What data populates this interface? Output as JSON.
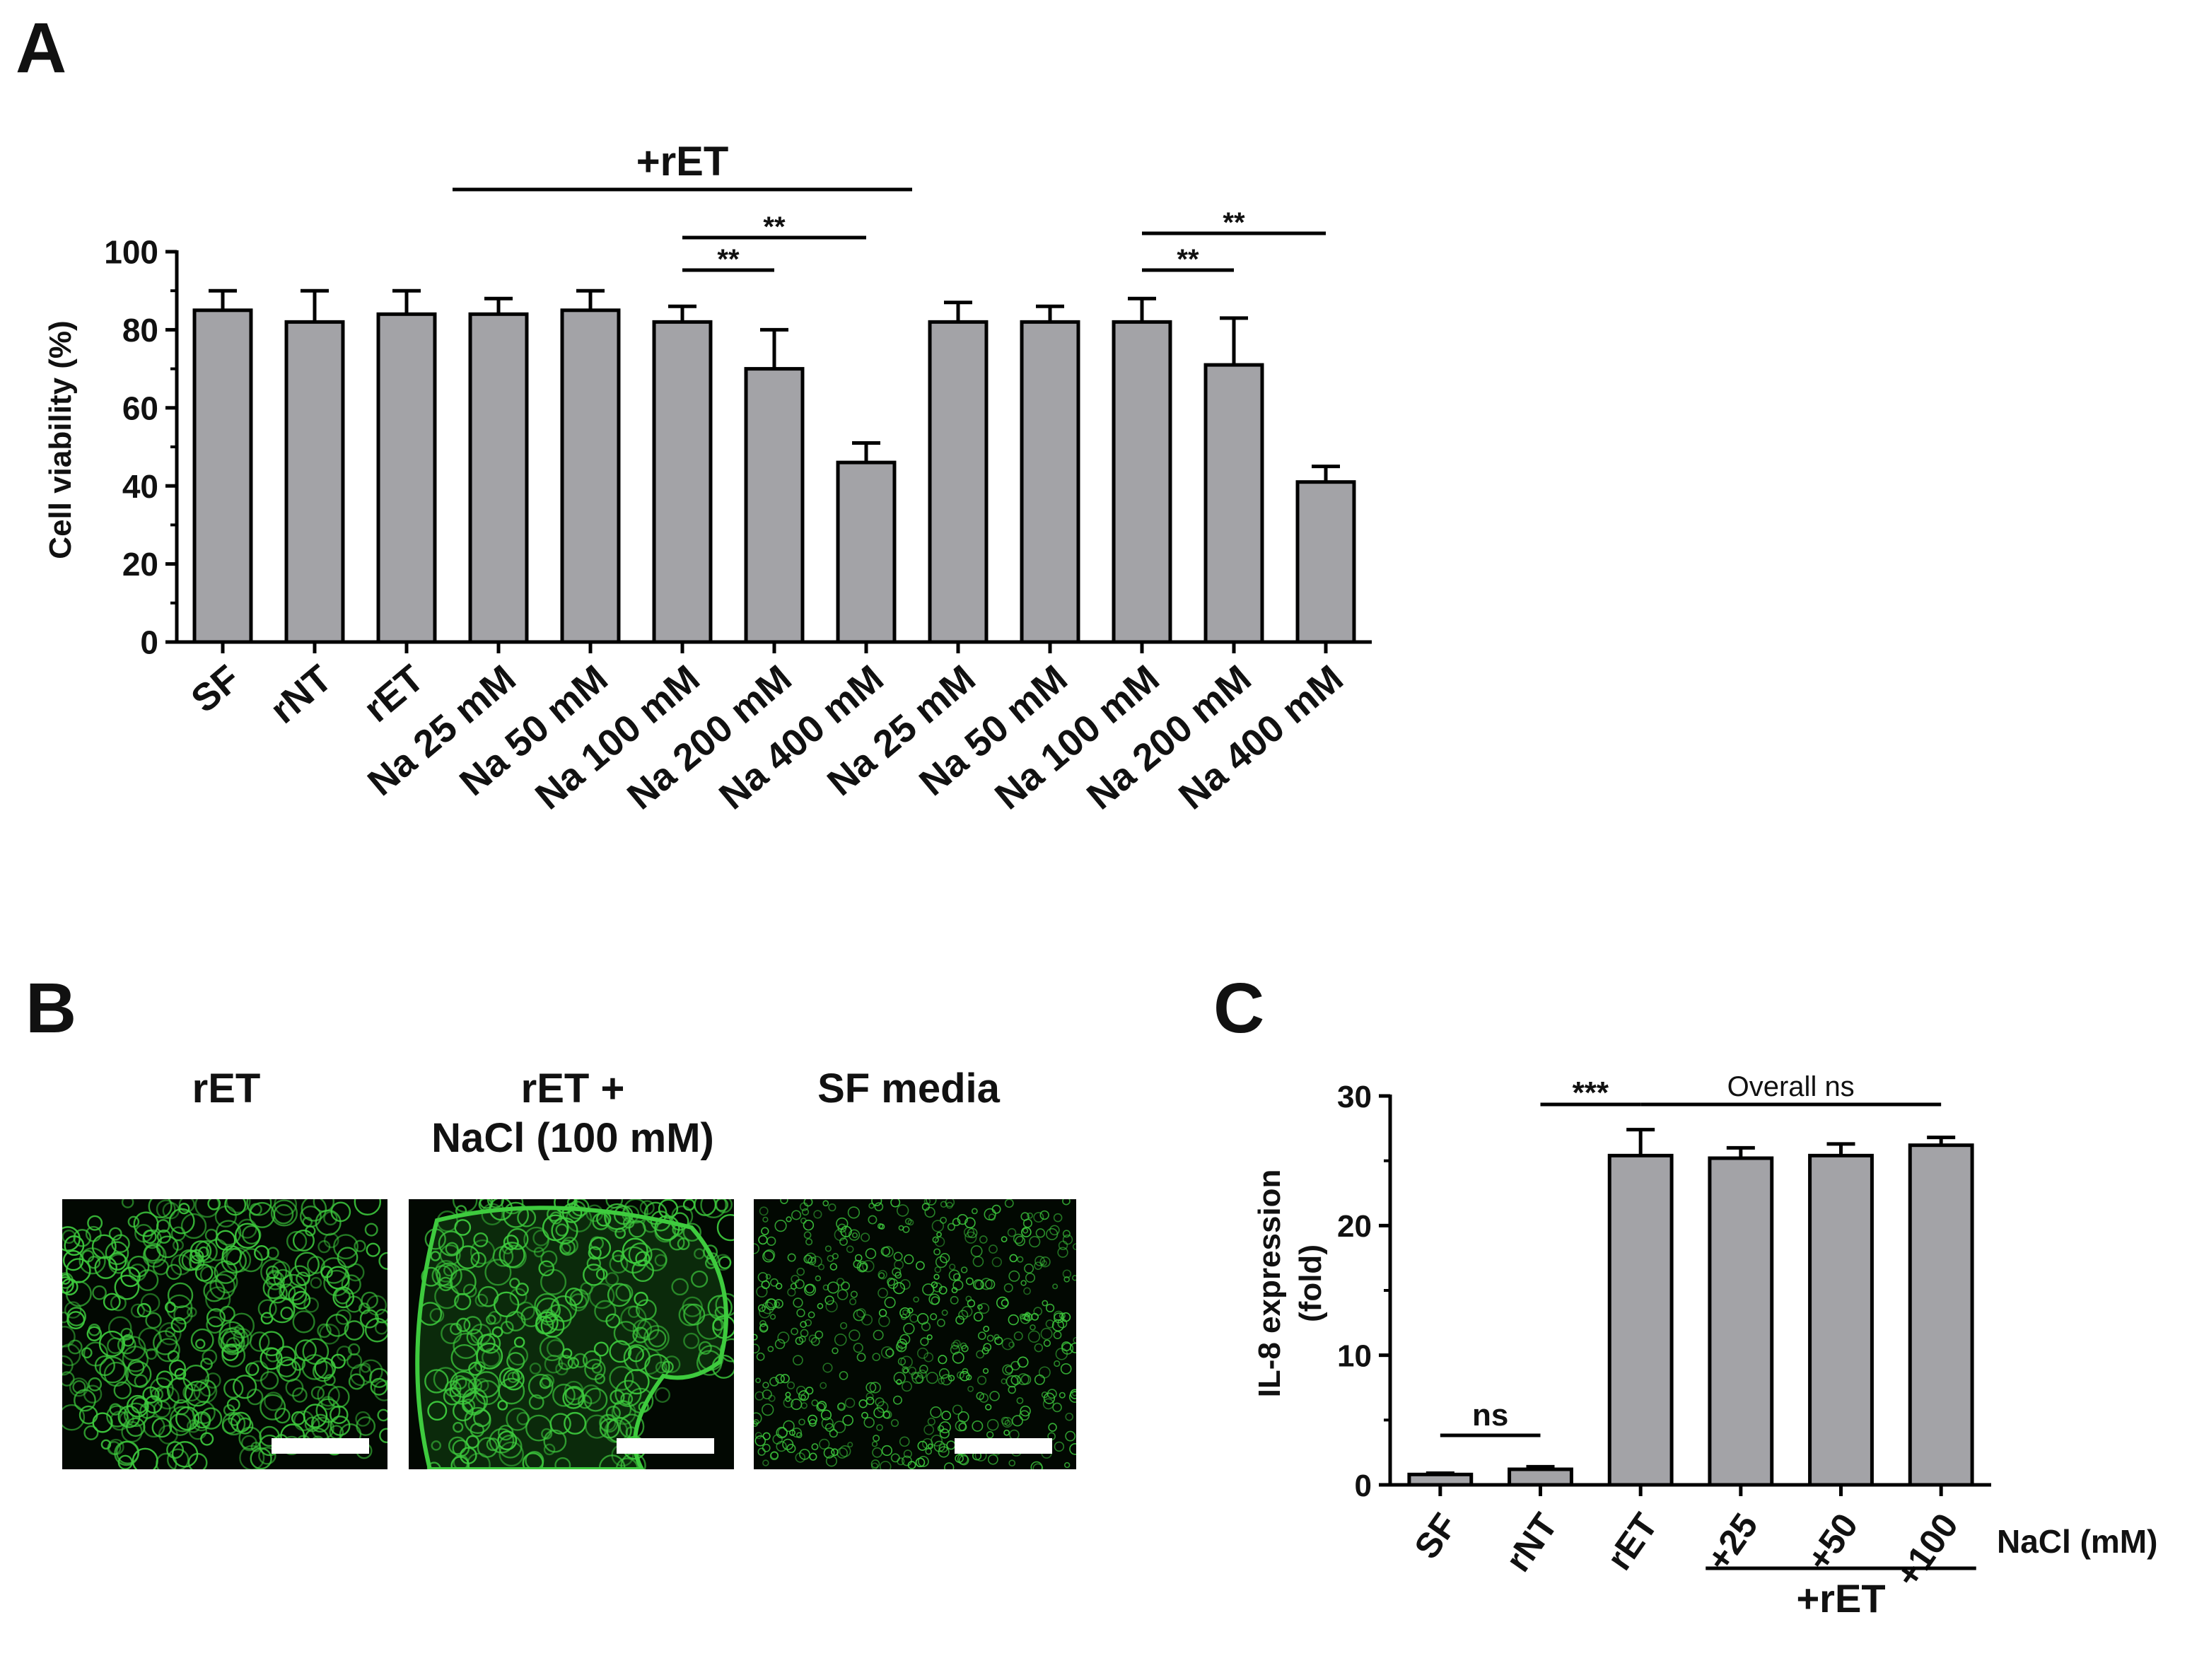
{
  "panels": {
    "a": {
      "letter": "A"
    },
    "b": {
      "letter": "B",
      "labels": [
        "rET",
        "rET +",
        "NaCl (100 mM)",
        "SF media"
      ]
    },
    "c": {
      "letter": "C"
    }
  },
  "colors": {
    "bar_fill": "#a3a3a7",
    "stroke": "#000000",
    "micro_green": "#3ecb3e",
    "micro_background": "#020802"
  },
  "chart_data": [
    {
      "panel": "A",
      "type": "bar",
      "categories": [
        "SF",
        "rNT",
        "rET",
        "Na 25 mM",
        "Na 50 mM",
        "Na 100 mM",
        "Na 200 mM",
        "Na 400 mM",
        "Na 25 mM",
        "Na 50 mM",
        "Na 100 mM",
        "Na 200 mM",
        "Na 400 mM"
      ],
      "values": [
        85,
        82,
        84,
        84,
        85,
        82,
        70,
        46,
        82,
        82,
        82,
        71,
        41
      ],
      "errors": [
        5,
        8,
        6,
        4,
        5,
        4,
        10,
        5,
        5,
        4,
        6,
        12,
        4
      ],
      "ylabel": "Cell viability (%)",
      "xlabel": "",
      "ylim": [
        0,
        100
      ],
      "yticks": [
        0,
        20,
        40,
        60,
        80,
        100
      ],
      "group_label": {
        "text": "+rET",
        "from": 3,
        "to": 7
      },
      "significance": [
        {
          "from": 5,
          "to": 6,
          "text": "**"
        },
        {
          "from": 5,
          "to": 7,
          "text": "**"
        },
        {
          "from": 10,
          "to": 11,
          "text": "**"
        },
        {
          "from": 10,
          "to": 12,
          "text": "**"
        }
      ]
    },
    {
      "panel": "C",
      "type": "bar",
      "categories": [
        "SF",
        "rNT",
        "rET",
        "+25",
        "+50",
        "+100"
      ],
      "values": [
        0.8,
        1.2,
        25.4,
        25.2,
        25.4,
        26.2
      ],
      "errors": [
        0.1,
        0.2,
        2.0,
        0.8,
        0.9,
        0.6
      ],
      "ylabel": "IL-8 expression\n(fold)",
      "xlabel": "NaCl (mM)",
      "ylim": [
        0,
        30
      ],
      "yticks": [
        0,
        10,
        20,
        30
      ],
      "group_label": {
        "text": "+rET",
        "from": 3,
        "to": 5
      },
      "significance": [
        {
          "from": 0,
          "to": 1,
          "text": "ns"
        },
        {
          "from": 1,
          "to": 2,
          "text": "***"
        },
        {
          "from": 2,
          "to": 5,
          "text": "Overall ns"
        }
      ]
    }
  ]
}
